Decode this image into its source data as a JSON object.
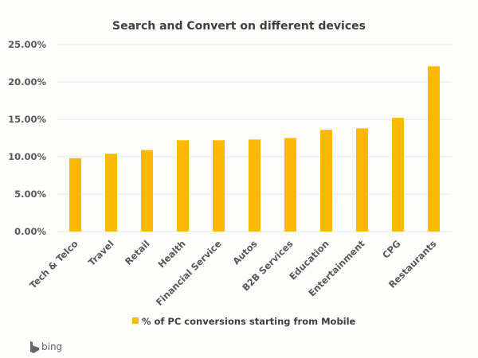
{
  "chart_data": {
    "type": "bar",
    "title": "Search and Convert on different devices",
    "categories": [
      "Tech & Telco",
      "Travel",
      "Retail",
      "Health",
      "Financial Service",
      "Autos",
      "B2B Services",
      "Education",
      "Entertainment",
      "CPG",
      "Restaurants"
    ],
    "series": [
      {
        "name": "% of PC conversions starting from Mobile",
        "values": [
          9.8,
          10.4,
          10.9,
          12.2,
          12.2,
          12.3,
          12.5,
          13.6,
          13.8,
          15.2,
          22.1
        ],
        "color": "#fdb905"
      }
    ],
    "ylim": [
      0,
      25
    ],
    "yticks": [
      "0.00%",
      "5.00%",
      "10.00%",
      "15.00%",
      "20.00%",
      "25.00%"
    ],
    "grid": true,
    "legend_position": "bottom"
  },
  "logo": {
    "text": "bing"
  }
}
